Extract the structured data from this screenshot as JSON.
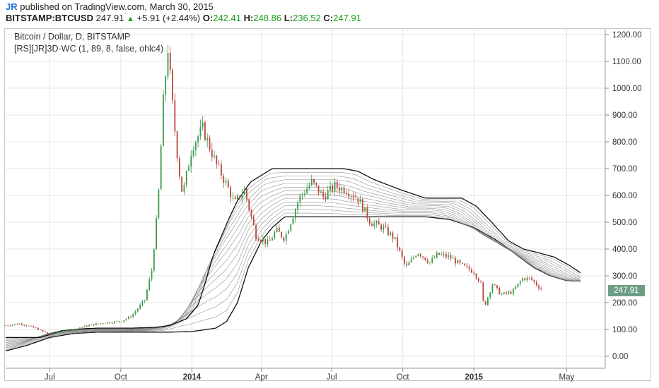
{
  "header": {
    "author": "JR",
    "published": "published on TradingView.com, March 30, 2015"
  },
  "quote": {
    "symbol": "BITSTAMP:BTCUSD",
    "price": "247.91",
    "change": "+5.91 (+2.44%)",
    "o_label": "O:",
    "o_value": "242.41",
    "h_label": "H:",
    "h_value": "248.86",
    "l_label": "L:",
    "l_value": "236.52",
    "c_label": "C:",
    "c_value": "247.91"
  },
  "legend": {
    "line1": "Bitcoin / Dollar, D, BITSTAMP",
    "line2": "[RS][JR]3D-WC (1, 89, 8, false, ohlc4)"
  },
  "price_tag": "247.91",
  "colors": {
    "up": "#3a9a4a",
    "down": "#b8473c",
    "accent": "#1a9e1a",
    "tag": "#6e9e86",
    "grid": "#e4e4e4"
  },
  "chart_data": {
    "type": "line",
    "title": "Bitcoin / Dollar, D, BITSTAMP",
    "xlabel": "",
    "ylabel": "",
    "ylim": [
      -30,
      1230
    ],
    "y_ticks": [
      "0.00",
      "100.00",
      "200.00",
      "300.00",
      "400.00",
      "500.00",
      "600.00",
      "700.00",
      "800.00",
      "900.00",
      "1000.00",
      "1100.00",
      "1200.00"
    ],
    "x_ticks": [
      {
        "label": "Jul",
        "date": "2013-07-01",
        "bold": false
      },
      {
        "label": "Oct",
        "date": "2013-10-01",
        "bold": false
      },
      {
        "label": "2014",
        "date": "2014-01-01",
        "bold": true
      },
      {
        "label": "Apr",
        "date": "2014-04-01",
        "bold": false
      },
      {
        "label": "Jul",
        "date": "2014-07-01",
        "bold": false
      },
      {
        "label": "Oct",
        "date": "2014-10-01",
        "bold": false
      },
      {
        "label": "2015",
        "date": "2015-01-01",
        "bold": true
      },
      {
        "label": "May",
        "date": "2015-05-01",
        "bold": false
      }
    ],
    "series": [
      {
        "values_kind": "price",
        "x": [
          "2013-05-05",
          "2013-05-25",
          "2013-06-15",
          "2013-07-01",
          "2013-07-15",
          "2013-08-01",
          "2013-08-20",
          "2013-09-10",
          "2013-10-01",
          "2013-10-15",
          "2013-11-01",
          "2013-11-10",
          "2013-11-18",
          "2013-11-25",
          "2013-12-01",
          "2013-12-08",
          "2013-12-15",
          "2013-12-20",
          "2014-01-01",
          "2014-01-15",
          "2014-02-01",
          "2014-02-15",
          "2014-02-25",
          "2014-03-10",
          "2014-03-25",
          "2014-04-10",
          "2014-04-20",
          "2014-05-01",
          "2014-05-20",
          "2014-06-05",
          "2014-06-20",
          "2014-07-05",
          "2014-07-20",
          "2014-08-05",
          "2014-08-20",
          "2014-09-05",
          "2014-09-20",
          "2014-10-05",
          "2014-10-20",
          "2014-11-05",
          "2014-11-15",
          "2014-12-01",
          "2014-12-15",
          "2015-01-01",
          "2015-01-10",
          "2015-01-14",
          "2015-01-25",
          "2015-02-05",
          "2015-02-20",
          "2015-03-05",
          "2015-03-15",
          "2015-03-30"
        ],
        "y": [
          115,
          122,
          102,
          80,
          92,
          100,
          115,
          125,
          130,
          150,
          210,
          320,
          560,
          950,
          1150,
          900,
          700,
          600,
          780,
          850,
          720,
          640,
          570,
          620,
          450,
          420,
          470,
          440,
          590,
          650,
          595,
          635,
          620,
          585,
          500,
          480,
          440,
          330,
          390,
          350,
          380,
          370,
          340,
          315,
          270,
          180,
          270,
          230,
          240,
          290,
          290,
          248
        ]
      }
    ],
    "ribbon": {
      "name": "[RS][JR]3D-WC (1, 89, 8, false, ohlc4)",
      "upper": {
        "x": [
          "2013-05-05",
          "2013-06-01",
          "2013-07-01",
          "2013-07-20",
          "2013-09-01",
          "2013-10-01",
          "2013-10-20",
          "2013-11-10",
          "2013-11-25",
          "2013-12-05",
          "2013-12-15",
          "2014-01-05",
          "2014-01-15",
          "2014-02-01",
          "2014-03-01",
          "2014-04-01",
          "2014-05-01",
          "2014-06-01",
          "2014-06-20",
          "2014-07-10",
          "2014-08-15",
          "2014-09-15",
          "2014-10-15",
          "2014-11-01",
          "2014-11-20",
          "2014-12-10",
          "2015-01-01",
          "2015-01-20",
          "2015-02-10",
          "2015-03-01",
          "2015-03-20",
          "2015-04-10",
          "2015-04-25",
          "2015-05-10",
          "2015-05-20"
        ],
        "y": [
          70,
          95,
          103,
          105,
          105,
          108,
          115,
          140,
          190,
          280,
          380,
          520,
          580,
          650,
          700,
          700,
          700,
          700,
          690,
          660,
          620,
          590,
          590,
          590,
          560,
          500,
          430,
          400,
          385,
          370,
          340,
          300,
          285,
          280,
          280
        ]
      },
      "lower": {
        "x": [
          "2013-05-05",
          "2013-06-01",
          "2013-07-01",
          "2013-08-01",
          "2013-09-01",
          "2013-10-01",
          "2013-11-01",
          "2013-12-01",
          "2014-01-01",
          "2014-02-01",
          "2014-02-15",
          "2014-03-01",
          "2014-03-15",
          "2014-04-01",
          "2014-04-15",
          "2014-05-01",
          "2014-06-01",
          "2014-07-01",
          "2014-08-01",
          "2014-09-01",
          "2014-10-01",
          "2014-11-01",
          "2014-12-01",
          "2015-01-01",
          "2015-02-01",
          "2015-03-01",
          "2015-03-20",
          "2015-04-10",
          "2015-05-01",
          "2015-05-20"
        ],
        "y": [
          20,
          40,
          70,
          85,
          90,
          90,
          90,
          90,
          92,
          105,
          130,
          200,
          330,
          430,
          480,
          520,
          520,
          520,
          520,
          520,
          520,
          520,
          510,
          480,
          430,
          370,
          330,
          300,
          282,
          280
        ]
      }
    }
  }
}
